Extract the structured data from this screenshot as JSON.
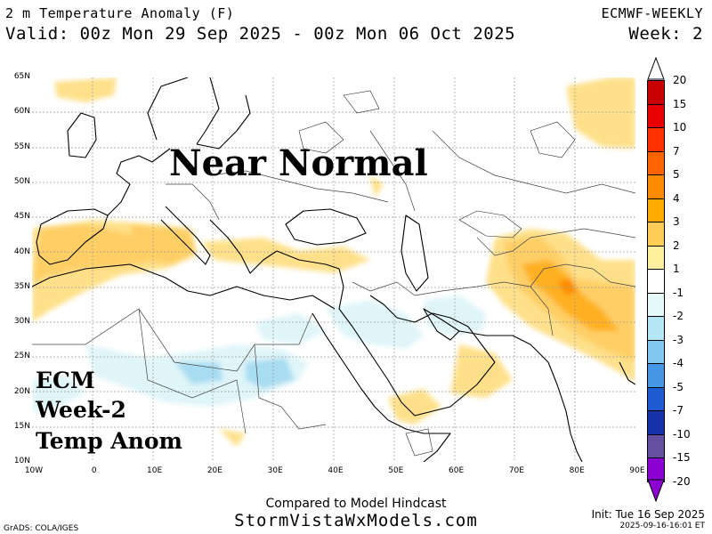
{
  "header": {
    "title": "2 m Temperature Anomaly (F)",
    "valid": "Valid: 00z Mon 29 Sep 2025 - 00z Mon 06 Oct 2025",
    "model": "ECMWF-WEEKLY",
    "week": "Week: 2"
  },
  "map": {
    "lat_labels": [
      "65N",
      "60N",
      "55N",
      "50N",
      "45N",
      "40N",
      "35N",
      "30N",
      "25N",
      "20N",
      "15N",
      "10N"
    ],
    "lon_labels": [
      "10W",
      "0",
      "10E",
      "20E",
      "30E",
      "40E",
      "50E",
      "60E",
      "70E",
      "80E",
      "90E"
    ],
    "overlay_text": "Near Normal",
    "ecm_lines": [
      "ECM",
      "Week-2",
      "Temp Anom"
    ]
  },
  "legend": {
    "entries": [
      {
        "label": "20",
        "color": "#ff1493"
      },
      {
        "label": "15",
        "color": "#c80000"
      },
      {
        "label": "10",
        "color": "#e60000"
      },
      {
        "label": "7",
        "color": "#ff3200"
      },
      {
        "label": "5",
        "color": "#ff6400"
      },
      {
        "label": "4",
        "color": "#ff8c00"
      },
      {
        "label": "3",
        "color": "#ffaa00"
      },
      {
        "label": "2",
        "color": "#ffcc55"
      },
      {
        "label": "1",
        "color": "#fff0a0"
      },
      {
        "label": "-1",
        "color": "#ffffff"
      },
      {
        "label": "-2",
        "color": "#e6fafa"
      },
      {
        "label": "-3",
        "color": "#b4e6f5"
      },
      {
        "label": "-4",
        "color": "#82c8f0"
      },
      {
        "label": "-5",
        "color": "#4696e6"
      },
      {
        "label": "-7",
        "color": "#1e5ad2"
      },
      {
        "label": "-10",
        "color": "#1432aa"
      },
      {
        "label": "-15",
        "color": "#6450a0"
      },
      {
        "label": "-20",
        "color": "#8c00d2"
      }
    ]
  },
  "footer": {
    "compared": "Compared to Model Hindcast",
    "site": "StormVistaWxModels.com",
    "init": "Init: Tue 16 Sep 2025",
    "stamp": "2025-09-16-16:01 ET",
    "grads": "GrADS: COLA/IGES"
  }
}
